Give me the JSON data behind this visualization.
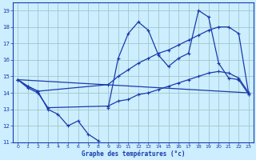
{
  "xlabel": "Graphe des températures (°c)",
  "bg_color": "#cceeff",
  "line_color": "#1a3aad",
  "grid_color": "#9bbfbf",
  "ylim": [
    11,
    19.5
  ],
  "xlim": [
    -0.5,
    23.5
  ],
  "yticks": [
    11,
    12,
    13,
    14,
    15,
    16,
    17,
    18,
    19
  ],
  "xticks": [
    0,
    1,
    2,
    3,
    4,
    5,
    6,
    7,
    8,
    9,
    10,
    11,
    12,
    13,
    14,
    15,
    16,
    17,
    18,
    19,
    20,
    21,
    22,
    23
  ],
  "line1_x": [
    0,
    1,
    2,
    3,
    4,
    5,
    6,
    7,
    8,
    9,
    10,
    11,
    12,
    13,
    14,
    15,
    16,
    17,
    18,
    19,
    20,
    21,
    22,
    23
  ],
  "line1_y": [
    14.8,
    14.4,
    14.1,
    13.0,
    12.7,
    12.0,
    12.3,
    11.5,
    11.1,
    13.1,
    null,
    null,
    null,
    null,
    null,
    null,
    null,
    null,
    null,
    null,
    null,
    null,
    null,
    null
  ],
  "line1b_x": [
    9,
    10,
    11,
    12,
    13,
    14,
    15,
    16,
    17,
    18,
    19,
    20,
    21,
    22,
    23
  ],
  "line1b_y": [
    13.1,
    16.1,
    17.6,
    18.3,
    17.8,
    16.3,
    15.6,
    16.1,
    16.4,
    19.0,
    18.6,
    15.8,
    14.9,
    14.8,
    13.9
  ],
  "line2_x": [
    0,
    1,
    2,
    23
  ],
  "line2_y": [
    14.8,
    14.4,
    14.1,
    14.0
  ],
  "line3_x": [
    0,
    1,
    2,
    9,
    10,
    11,
    12,
    13,
    14,
    15,
    16,
    17,
    18,
    19,
    20,
    21,
    22,
    23
  ],
  "line3_y": [
    14.8,
    14.4,
    14.1,
    14.5,
    15.0,
    15.4,
    15.8,
    16.1,
    16.4,
    16.6,
    16.9,
    17.2,
    17.5,
    17.8,
    18.0,
    18.0,
    17.6,
    13.9
  ],
  "line4_x": [
    0,
    1,
    2,
    3,
    9,
    10,
    11,
    12,
    13,
    14,
    15,
    16,
    17,
    18,
    19,
    20,
    21,
    22,
    23
  ],
  "line4_y": [
    14.8,
    14.3,
    14.0,
    13.1,
    13.2,
    13.5,
    13.6,
    13.9,
    14.0,
    14.2,
    14.4,
    14.6,
    14.8,
    15.0,
    15.2,
    15.3,
    15.2,
    14.9,
    14.0
  ]
}
